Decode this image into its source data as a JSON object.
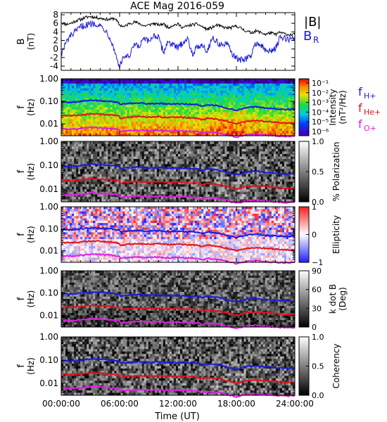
{
  "title": "ACE Mag 2016-059",
  "xlabel": "Time (UT)",
  "x_ticks": [
    "00:00:00",
    "06:00:00",
    "12:00:00",
    "18:00:00",
    "24:00:00"
  ],
  "colors": {
    "B_total": "#000000",
    "B_R": "#1a1adb",
    "f_H": "#1a1adb",
    "f_He": "#e0141e",
    "f_O": "#e01ee0"
  },
  "chart_data": [
    {
      "type": "line",
      "panel": "B",
      "ylabel": "B",
      "yunit": "(nT)",
      "ylim": [
        -5,
        8.5
      ],
      "y_ticks": [
        "8",
        "6",
        "4",
        "2",
        "0",
        "-2",
        "-4"
      ],
      "legend": [
        "|B|",
        "B_R"
      ],
      "x_hours": [
        0,
        0.5,
        1,
        1.5,
        2,
        2.5,
        3,
        3.5,
        4,
        4.5,
        5,
        5.5,
        6,
        6.5,
        7,
        7.5,
        8,
        8.5,
        9,
        9.5,
        10,
        10.5,
        11,
        11.5,
        12,
        12.5,
        13,
        13.5,
        14,
        14.5,
        15,
        15.5,
        16,
        16.5,
        17,
        17.5,
        18,
        18.5,
        19,
        19.5,
        20,
        20.5,
        21,
        21.5,
        22,
        22.5,
        23,
        23.5,
        24
      ],
      "series": [
        {
          "name": "|B|",
          "values": [
            6.2,
            5.8,
            6.0,
            6.6,
            6.9,
            7.4,
            7.6,
            7.4,
            7.2,
            7.0,
            6.9,
            7.2,
            5.6,
            5.2,
            6.0,
            6.3,
            6.0,
            5.4,
            5.6,
            6.0,
            5.6,
            5.9,
            5.0,
            5.6,
            5.8,
            5.0,
            5.4,
            5.7,
            5.8,
            5.2,
            4.6,
            5.0,
            5.6,
            5.2,
            4.9,
            5.0,
            5.4,
            4.8,
            4.2,
            3.8,
            4.2,
            3.9,
            3.4,
            3.8,
            3.4,
            3.9,
            3.5,
            3.3,
            3.4
          ]
        },
        {
          "name": "B_R",
          "values": [
            -1.2,
            1.5,
            3.2,
            4.0,
            5.2,
            5.6,
            5.8,
            6.1,
            5.4,
            4.6,
            2.8,
            -0.6,
            -4.2,
            -1.5,
            -2.1,
            1.0,
            0.4,
            2.4,
            1.6,
            3.3,
            2.6,
            -0.8,
            1.9,
            0.8,
            0.2,
            1.7,
            2.3,
            -1.1,
            0.4,
            1.2,
            -0.6,
            2.7,
            1.6,
            0.9,
            1.2,
            -0.8,
            -2.3,
            -2.6,
            -2.2,
            -1.6,
            1.5,
            0.9,
            -0.4,
            -0.6,
            0.3,
            2.6,
            2.4,
            2.3,
            2.6
          ]
        }
      ]
    },
    {
      "type": "heatmap",
      "panel": "Intensity",
      "ylabel": "f",
      "yunit": "(Hz)",
      "yscale": "log",
      "ylim": [
        0.003,
        1.0
      ],
      "y_ticks": [
        "1.00",
        "0.10",
        "0.01"
      ],
      "colorbar": {
        "label": "Intensity",
        "unit": "(nT²/Hz)",
        "scale": "log",
        "ticks": [
          "10⁻¹",
          "10⁻²",
          "10⁻³",
          "10⁻⁴",
          "10⁻⁵",
          "10⁻⁶"
        ]
      },
      "legend": [
        "f_H+",
        "f_He+",
        "f_O+"
      ]
    },
    {
      "type": "heatmap",
      "panel": "Polarization",
      "ylabel": "f",
      "yunit": "(Hz)",
      "yscale": "log",
      "ylim": [
        0.003,
        1.0
      ],
      "y_ticks": [
        "1.00",
        "0.10",
        "0.01"
      ],
      "colorbar": {
        "label": "% Polarization",
        "unit": "",
        "scale": "linear",
        "ticks": [
          "1.0",
          "0.5",
          "0.0"
        ]
      }
    },
    {
      "type": "heatmap",
      "panel": "Ellipticity",
      "ylabel": "f",
      "yunit": "(Hz)",
      "yscale": "log",
      "ylim": [
        0.003,
        1.0
      ],
      "y_ticks": [
        "1.00",
        "0.10",
        "0.01"
      ],
      "colorbar": {
        "label": "Ellipticity",
        "unit": "",
        "scale": "linear",
        "ticks": [
          "1",
          "0",
          "−1"
        ]
      }
    },
    {
      "type": "heatmap",
      "panel": "kdotB",
      "ylabel": "f",
      "yunit": "(Hz)",
      "yscale": "log",
      "ylim": [
        0.003,
        1.0
      ],
      "y_ticks": [
        "1.00",
        "0.10",
        "0.01"
      ],
      "colorbar": {
        "label": "k dot B",
        "unit": "(Deg)",
        "scale": "linear",
        "ticks": [
          "90",
          "60",
          "30",
          "0"
        ]
      }
    },
    {
      "type": "heatmap",
      "panel": "Coherency",
      "ylabel": "f",
      "yunit": "(Hz)",
      "yscale": "log",
      "ylim": [
        0.003,
        1.0
      ],
      "y_ticks": [
        "1.00",
        "0.10",
        "0.01"
      ],
      "colorbar": {
        "label": "Coherency",
        "unit": "",
        "scale": "linear",
        "ticks": [
          "1.0",
          "0.5",
          "0.0"
        ]
      }
    }
  ],
  "gyrofrequency_lines": {
    "x_hours": [
      0,
      1,
      2,
      3,
      4,
      5,
      5.9,
      6.1,
      7,
      8,
      9,
      10,
      11,
      12,
      13,
      14,
      14.5,
      15,
      16,
      17,
      18,
      19,
      20,
      21,
      22,
      23,
      24
    ],
    "f_H": [
      0.095,
      0.09,
      0.1,
      0.11,
      0.107,
      0.1,
      0.09,
      0.075,
      0.08,
      0.085,
      0.078,
      0.082,
      0.076,
      0.078,
      0.074,
      0.072,
      0.06,
      0.07,
      0.065,
      0.05,
      0.04,
      0.052,
      0.058,
      0.05,
      0.048,
      0.044,
      0.045
    ],
    "f_He": [
      0.024,
      0.023,
      0.025,
      0.028,
      0.027,
      0.025,
      0.023,
      0.018,
      0.02,
      0.021,
      0.02,
      0.021,
      0.019,
      0.02,
      0.019,
      0.018,
      0.015,
      0.018,
      0.016,
      0.013,
      0.01,
      0.013,
      0.014,
      0.013,
      0.012,
      0.011,
      0.011
    ],
    "f_O": [
      0.006,
      0.0058,
      0.0063,
      0.007,
      0.0068,
      0.0063,
      0.0058,
      0.0047,
      0.005,
      0.0053,
      0.005,
      0.0052,
      0.0048,
      0.005,
      0.0047,
      0.0046,
      0.0038,
      0.0045,
      0.0041,
      0.0033,
      0.0026,
      0.0033,
      0.0036,
      0.0032,
      0.003,
      0.0028,
      0.0029
    ]
  }
}
